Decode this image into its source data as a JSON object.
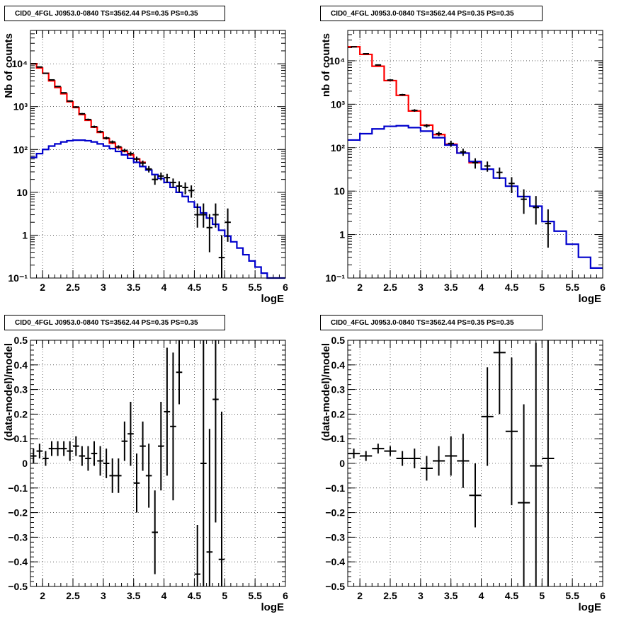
{
  "chart_data": [
    {
      "type": "line",
      "title": "CID0_4FGL J0953.0-0840 TS=3562.44 PS=0.35 PS=0.35",
      "xlabel": "logE",
      "ylabel": "Nb of counts",
      "yscale": "log",
      "xlim": [
        1.8,
        6.0
      ],
      "ylim": [
        0.1,
        60000
      ],
      "grid": true,
      "xticks": [
        2,
        2.5,
        3,
        3.5,
        4,
        4.5,
        5,
        5.5,
        6
      ],
      "xtick_labels": [
        "2",
        "2.5",
        "3",
        "3.5",
        "4",
        "4.5",
        "5",
        "5.5",
        "6"
      ],
      "yticks": [
        0.1,
        1,
        10,
        100,
        1000,
        10000
      ],
      "ytick_labels": [
        "10⁻¹",
        "1",
        "10",
        "10²",
        "10³",
        "10⁴"
      ],
      "series": [
        {
          "color": "#ff0000",
          "style": "step",
          "edges": [
            1.8,
            1.9,
            2.0,
            2.1,
            2.2,
            2.3,
            2.4,
            2.5,
            2.6,
            2.7,
            2.8,
            2.9,
            3.0,
            3.1,
            3.2,
            3.3,
            3.4,
            3.5,
            3.6,
            3.7
          ],
          "values": [
            10000,
            8000,
            6000,
            4000,
            2800,
            2000,
            1300,
            950,
            650,
            480,
            330,
            250,
            180,
            140,
            110,
            90,
            75,
            60,
            50
          ]
        },
        {
          "color": "#0000cc",
          "style": "step",
          "edges": [
            1.8,
            1.9,
            2.0,
            2.1,
            2.2,
            2.3,
            2.4,
            2.5,
            2.6,
            2.7,
            2.8,
            2.9,
            3.0,
            3.1,
            3.2,
            3.3,
            3.4,
            3.5,
            3.6,
            3.7,
            3.8,
            3.9,
            4.0,
            4.1,
            4.2,
            4.3,
            4.4,
            4.5,
            4.6,
            4.7,
            4.8,
            4.9,
            5.0,
            5.1,
            5.2,
            5.3,
            5.4,
            5.5,
            5.6,
            5.7,
            5.8,
            5.9,
            6.0
          ],
          "values": [
            65,
            80,
            100,
            120,
            135,
            150,
            160,
            165,
            165,
            160,
            150,
            135,
            120,
            105,
            90,
            75,
            62,
            50,
            40,
            33,
            26,
            21,
            17,
            13,
            10,
            8,
            6,
            4.5,
            3.3,
            2.5,
            1.8,
            1.3,
            0.95,
            0.7,
            0.5,
            0.35,
            0.25,
            0.18,
            0.13,
            0.1,
            0.1,
            0.1
          ]
        },
        {
          "color": "#000000",
          "style": "errorbar",
          "x": [
            1.85,
            1.95,
            2.05,
            2.15,
            2.25,
            2.35,
            2.45,
            2.55,
            2.65,
            2.75,
            2.85,
            2.95,
            3.05,
            3.15,
            3.25,
            3.35,
            3.45,
            3.55,
            3.65,
            3.75,
            3.85,
            3.95,
            4.05,
            4.15,
            4.25,
            4.35,
            4.45,
            4.55,
            4.65,
            4.75,
            4.85,
            4.95,
            5.05
          ],
          "y": [
            10000,
            8400,
            6000,
            4200,
            2950,
            2100,
            1350,
            980,
            680,
            500,
            340,
            260,
            185,
            150,
            115,
            95,
            80,
            60,
            48,
            35,
            20,
            24,
            22,
            17,
            14,
            13,
            11,
            3,
            3,
            1.5,
            3,
            0.3,
            2
          ],
          "yerr_lo": [
            200,
            150,
            120,
            100,
            80,
            60,
            45,
            40,
            30,
            25,
            20,
            17,
            14,
            12,
            10,
            9,
            9,
            8,
            7,
            6,
            5,
            5,
            5,
            4,
            4,
            4,
            3.5,
            1.5,
            1.5,
            1.1,
            1.5,
            0.2,
            1.3
          ],
          "yerr_hi": [
            200,
            150,
            120,
            100,
            80,
            60,
            45,
            40,
            30,
            25,
            20,
            17,
            14,
            12,
            10,
            9,
            9,
            8,
            7,
            6,
            5,
            5,
            5,
            4,
            4,
            4,
            3.5,
            2.5,
            2.5,
            1.6,
            2.5,
            0.7,
            2.2
          ]
        }
      ]
    },
    {
      "type": "line",
      "title": "CID0_4FGL J0953.0-0840 TS=3562.44 PS=0.35 PS=0.35",
      "xlabel": "logE",
      "ylabel": "nb of counts",
      "yscale": "log",
      "xlim": [
        1.8,
        6.0
      ],
      "ylim": [
        0.1,
        50000
      ],
      "grid": true,
      "xticks": [
        2,
        2.5,
        3,
        3.5,
        4,
        4.5,
        5,
        5.5,
        6
      ],
      "xtick_labels": [
        "2",
        "2.5",
        "3",
        "3.5",
        "4",
        "4.5",
        "5",
        "5.5",
        "6"
      ],
      "yticks": [
        0.1,
        1,
        10,
        100,
        1000,
        10000
      ],
      "ytick_labels": [
        "10⁻¹",
        "1",
        "10",
        "10²",
        "10³",
        "10⁴"
      ],
      "series": [
        {
          "color": "#ff0000",
          "style": "step",
          "edges": [
            1.8,
            2.0,
            2.2,
            2.4,
            2.6,
            2.8,
            3.0,
            3.2,
            3.4,
            3.6,
            3.8,
            4.0
          ],
          "values": [
            21000,
            14000,
            7500,
            3500,
            1600,
            700,
            330,
            200,
            120,
            75,
            45
          ]
        },
        {
          "color": "#0000cc",
          "style": "step",
          "edges": [
            1.8,
            2.0,
            2.2,
            2.4,
            2.6,
            2.8,
            3.0,
            3.2,
            3.4,
            3.6,
            3.8,
            4.0,
            4.2,
            4.4,
            4.6,
            4.8,
            5.0,
            5.2,
            5.4,
            5.6,
            5.8,
            6.0
          ],
          "values": [
            150,
            210,
            270,
            310,
            320,
            290,
            240,
            170,
            115,
            75,
            48,
            32,
            20,
            13,
            7.5,
            4.5,
            2,
            1.2,
            0.6,
            0.3,
            0.17
          ]
        },
        {
          "color": "#000000",
          "style": "errorbar",
          "x": [
            1.9,
            2.1,
            2.3,
            2.5,
            2.7,
            2.9,
            3.1,
            3.3,
            3.5,
            3.7,
            3.9,
            4.1,
            4.3,
            4.5,
            4.7,
            4.9,
            5.1
          ],
          "y": [
            21000,
            14500,
            8000,
            3600,
            1650,
            720,
            320,
            210,
            125,
            80,
            45,
            38,
            27,
            15,
            6.5,
            4.2,
            1.8
          ],
          "yerr_lo": [
            300,
            250,
            200,
            120,
            80,
            50,
            30,
            25,
            20,
            15,
            12,
            10,
            8,
            6,
            3.5,
            2.5,
            1.3
          ],
          "yerr_hi": [
            300,
            250,
            200,
            120,
            80,
            50,
            30,
            25,
            20,
            15,
            12,
            10,
            8,
            6,
            4.5,
            3.5,
            2
          ]
        }
      ]
    },
    {
      "type": "scatter",
      "title": "CID0_4FGL J0953.0-0840 TS=3562.44 PS=0.35 PS=0.35",
      "xlabel": "logE",
      "ylabel": "(data-model)/model",
      "xlim": [
        1.8,
        6.0
      ],
      "ylim": [
        -0.5,
        0.5
      ],
      "grid": true,
      "xticks": [
        2,
        2.5,
        3,
        3.5,
        4,
        4.5,
        5,
        5.5,
        6
      ],
      "xtick_labels": [
        "2",
        "2.5",
        "3",
        "3.5",
        "4",
        "4.5",
        "5",
        "5.5",
        "6"
      ],
      "yticks": [
        -0.5,
        -0.4,
        -0.3,
        -0.2,
        -0.1,
        0,
        0.1,
        0.2,
        0.3,
        0.4,
        0.5
      ],
      "ytick_labels": [
        "−0.5",
        "−0.4",
        "−0.3",
        "−0.2",
        "−0.1",
        "0",
        "0.1",
        "0.2",
        "0.3",
        "0.4",
        "0.5"
      ],
      "series": [
        {
          "color": "#000000",
          "style": "errorbar",
          "xhalf": 0.05,
          "x": [
            1.85,
            1.95,
            2.05,
            2.15,
            2.25,
            2.35,
            2.45,
            2.55,
            2.65,
            2.75,
            2.85,
            2.95,
            3.05,
            3.15,
            3.25,
            3.35,
            3.45,
            3.55,
            3.65,
            3.75,
            3.85,
            3.95,
            4.05,
            4.15,
            4.25,
            4.55,
            4.65,
            4.75,
            4.85,
            4.95
          ],
          "y": [
            0.03,
            0.05,
            0.02,
            0.06,
            0.06,
            0.06,
            0.05,
            0.07,
            0.03,
            0.02,
            0.04,
            0.01,
            0.0,
            -0.05,
            -0.05,
            0.09,
            0.12,
            -0.08,
            0.07,
            -0.05,
            -0.28,
            0.07,
            0.21,
            0.15,
            0.37,
            -0.45,
            0.0,
            -0.36,
            0.26,
            -0.39
          ],
          "yerr": [
            0.03,
            0.03,
            0.03,
            0.03,
            0.03,
            0.03,
            0.04,
            0.04,
            0.04,
            0.05,
            0.05,
            0.06,
            0.06,
            0.07,
            0.07,
            0.08,
            0.13,
            0.12,
            0.1,
            0.13,
            0.17,
            0.18,
            0.26,
            0.3,
            0.13,
            0.2,
            0.5,
            0.5,
            0.5,
            0.6
          ]
        }
      ]
    },
    {
      "type": "scatter",
      "title": "CID0_4FGL J0953.0-0840 TS=3562.44 PS=0.35 PS=0.35",
      "xlabel": "logE",
      "ylabel": "(data-model)/model",
      "xlim": [
        1.8,
        6.0
      ],
      "ylim": [
        -0.5,
        0.5
      ],
      "grid": true,
      "xticks": [
        2,
        2.5,
        3,
        3.5,
        4,
        4.5,
        5,
        5.5,
        6
      ],
      "xtick_labels": [
        "2",
        "2.5",
        "3",
        "3.5",
        "4",
        "4.5",
        "5",
        "5.5",
        "6"
      ],
      "yticks": [
        -0.5,
        -0.4,
        -0.3,
        -0.2,
        -0.1,
        0,
        0.1,
        0.2,
        0.3,
        0.4,
        0.5
      ],
      "ytick_labels": [
        "−0.5",
        "−0.4",
        "−0.3",
        "−0.2",
        "−0.1",
        "0",
        "0.1",
        "0.2",
        "0.3",
        "0.4",
        "0.5"
      ],
      "series": [
        {
          "color": "#000000",
          "style": "errorbar",
          "xhalf": 0.1,
          "x": [
            1.9,
            2.1,
            2.3,
            2.5,
            2.7,
            2.9,
            3.1,
            3.3,
            3.5,
            3.7,
            3.9,
            4.1,
            4.3,
            4.5,
            4.7,
            4.9,
            5.1
          ],
          "y": [
            0.04,
            0.03,
            0.06,
            0.05,
            0.02,
            0.02,
            -0.02,
            0.01,
            0.03,
            0.01,
            -0.13,
            0.19,
            0.45,
            0.13,
            -0.16,
            -0.01,
            0.02
          ],
          "yerr": [
            0.02,
            0.02,
            0.02,
            0.02,
            0.03,
            0.04,
            0.05,
            0.06,
            0.08,
            0.11,
            0.13,
            0.2,
            0.25,
            0.3,
            0.4,
            0.5,
            0.8
          ]
        }
      ]
    }
  ]
}
